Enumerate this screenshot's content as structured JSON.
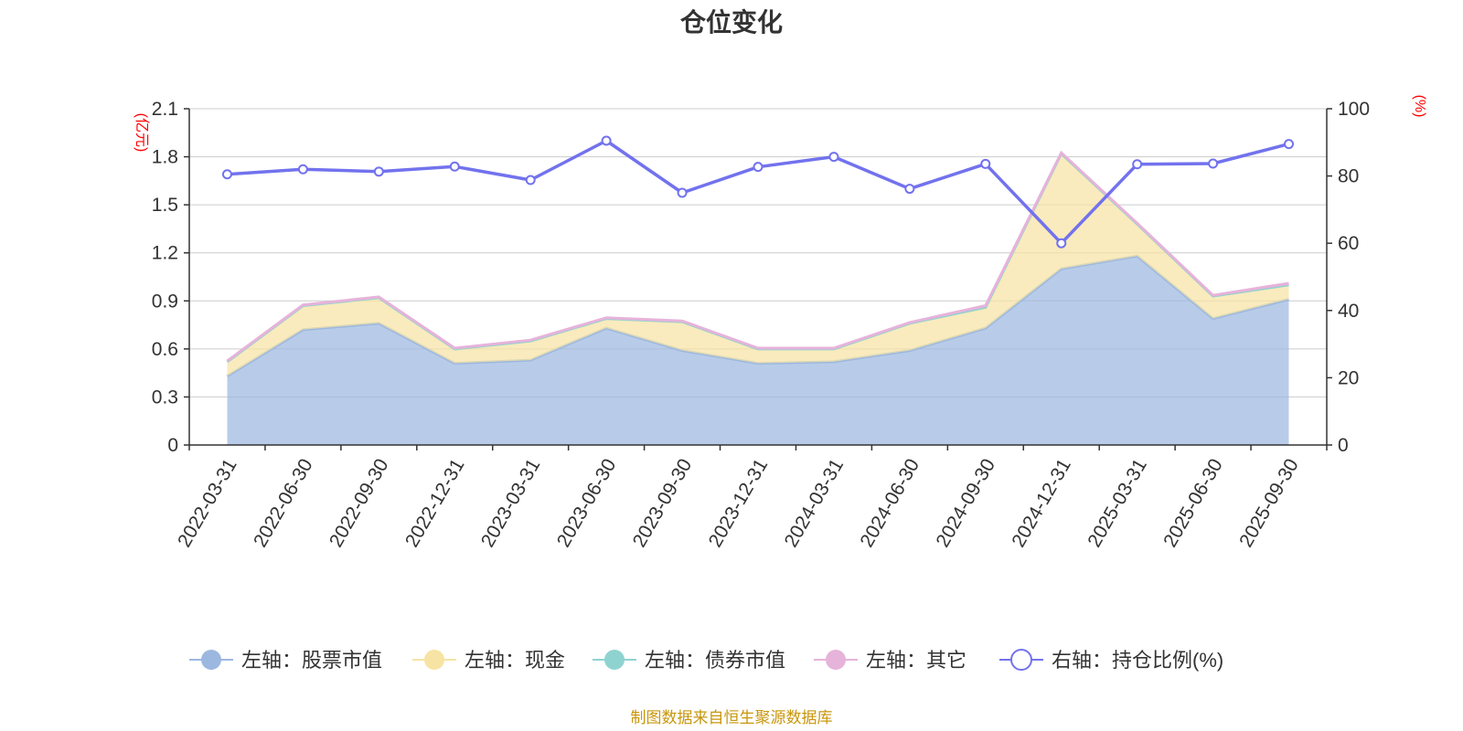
{
  "chart_data": {
    "type": "area",
    "title": "仓位变化",
    "left_axis": {
      "unit": "(亿元)",
      "ticks": [
        "0",
        "0.3",
        "0.6",
        "0.9",
        "1.2",
        "1.5",
        "1.8",
        "2.1"
      ],
      "range": [
        0,
        2.1
      ]
    },
    "right_axis": {
      "unit": "(%)",
      "ticks": [
        "0",
        "20",
        "40",
        "60",
        "80",
        "100"
      ],
      "range": [
        0,
        100
      ]
    },
    "categories": [
      "2022-03-31",
      "2022-06-30",
      "2022-09-30",
      "2022-12-31",
      "2023-03-31",
      "2023-06-30",
      "2023-09-30",
      "2023-12-31",
      "2024-03-31",
      "2024-06-30",
      "2024-09-30",
      "2024-12-31",
      "2025-03-31",
      "2025-06-30",
      "2025-09-30"
    ],
    "series": [
      {
        "name": "左轴：股票市值",
        "axis": "left",
        "kind": "stack",
        "color": "#9cb8e0",
        "values": [
          0.43,
          0.72,
          0.76,
          0.51,
          0.53,
          0.73,
          0.59,
          0.51,
          0.52,
          0.59,
          0.73,
          1.1,
          1.18,
          0.79,
          0.91
        ]
      },
      {
        "name": "左轴：现金",
        "axis": "left",
        "kind": "stack",
        "color": "#f7e3a3",
        "values": [
          0.09,
          0.15,
          0.16,
          0.09,
          0.12,
          0.06,
          0.18,
          0.09,
          0.08,
          0.17,
          0.13,
          0.72,
          0.2,
          0.14,
          0.09
        ]
      },
      {
        "name": "左轴：债券市值",
        "axis": "left",
        "kind": "stack",
        "color": "#8fd3d1",
        "values": [
          0,
          0,
          0,
          0,
          0,
          0,
          0,
          0,
          0,
          0,
          0,
          0,
          0,
          0,
          0
        ]
      },
      {
        "name": "左轴：其它",
        "axis": "left",
        "kind": "stack",
        "color": "#e6b3da",
        "values": [
          0.005,
          0.005,
          0.005,
          0.005,
          0.005,
          0.005,
          0.005,
          0.005,
          0.005,
          0.005,
          0.01,
          0.005,
          0.005,
          0.005,
          0.01
        ]
      },
      {
        "name": "右轴：持仓比例(%)",
        "axis": "right",
        "kind": "line",
        "color": "#7272ee",
        "values": [
          80.5,
          82.0,
          81.3,
          82.8,
          78.8,
          90.5,
          75.0,
          82.7,
          85.7,
          76.2,
          83.6,
          60.0,
          83.5,
          83.7,
          89.5
        ]
      }
    ]
  },
  "footer": {
    "source": "制图数据来自恒生聚源数据库"
  }
}
